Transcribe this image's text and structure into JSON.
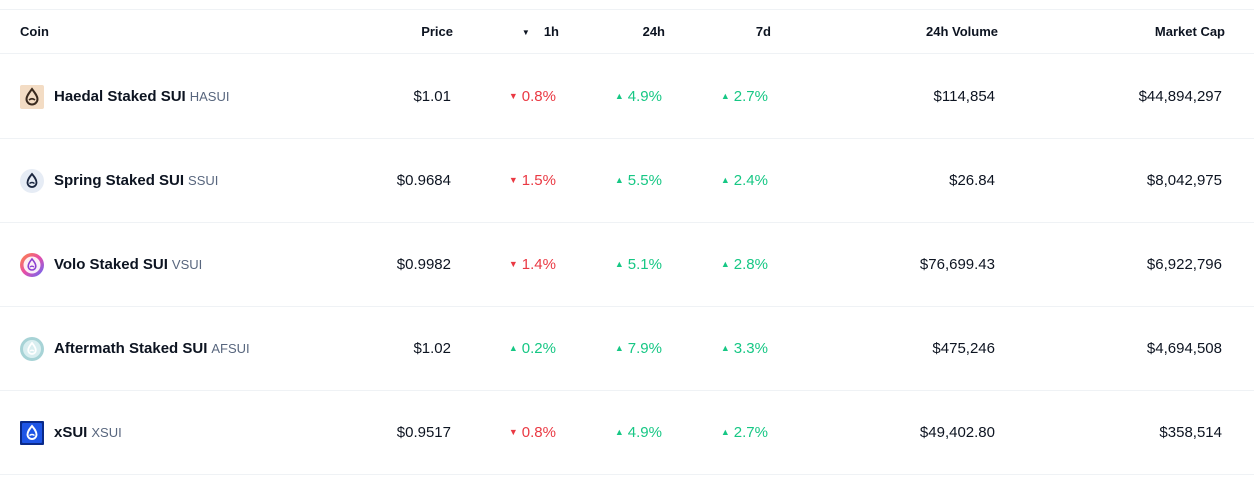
{
  "header": {
    "coin": "Coin",
    "price": "Price",
    "sort_icon": "▼",
    "h1": "1h",
    "h24": "24h",
    "d7": "7d",
    "volume": "24h Volume",
    "market_cap": "Market Cap"
  },
  "colors": {
    "up": "#16c784",
    "down": "#ea3943"
  },
  "rows": [
    {
      "name": "Haedal Staked SUI",
      "symbol": "HASUI",
      "icon": "haedal-sui-icon",
      "price": "$1.01",
      "h1": {
        "dir": "down",
        "arrow": "▼",
        "value": "0.8%"
      },
      "h24": {
        "dir": "up",
        "arrow": "▲",
        "value": "4.9%"
      },
      "d7": {
        "dir": "up",
        "arrow": "▲",
        "value": "2.7%"
      },
      "volume": "$114,854",
      "market_cap": "$44,894,297"
    },
    {
      "name": "Spring Staked SUI",
      "symbol": "SSUI",
      "icon": "spring-sui-icon",
      "price": "$0.9684",
      "h1": {
        "dir": "down",
        "arrow": "▼",
        "value": "1.5%"
      },
      "h24": {
        "dir": "up",
        "arrow": "▲",
        "value": "5.5%"
      },
      "d7": {
        "dir": "up",
        "arrow": "▲",
        "value": "2.4%"
      },
      "volume": "$26.84",
      "market_cap": "$8,042,975"
    },
    {
      "name": "Volo Staked SUI",
      "symbol": "VSUI",
      "icon": "volo-sui-icon",
      "price": "$0.9982",
      "h1": {
        "dir": "down",
        "arrow": "▼",
        "value": "1.4%"
      },
      "h24": {
        "dir": "up",
        "arrow": "▲",
        "value": "5.1%"
      },
      "d7": {
        "dir": "up",
        "arrow": "▲",
        "value": "2.8%"
      },
      "volume": "$76,699.43",
      "market_cap": "$6,922,796"
    },
    {
      "name": "Aftermath Staked SUI",
      "symbol": "AFSUI",
      "icon": "aftermath-sui-icon",
      "price": "$1.02",
      "h1": {
        "dir": "up",
        "arrow": "▲",
        "value": "0.2%"
      },
      "h24": {
        "dir": "up",
        "arrow": "▲",
        "value": "7.9%"
      },
      "d7": {
        "dir": "up",
        "arrow": "▲",
        "value": "3.3%"
      },
      "volume": "$475,246",
      "market_cap": "$4,694,508"
    },
    {
      "name": "xSUI",
      "symbol": "XSUI",
      "icon": "xsui-icon",
      "price": "$0.9517",
      "h1": {
        "dir": "down",
        "arrow": "▼",
        "value": "0.8%"
      },
      "h24": {
        "dir": "up",
        "arrow": "▲",
        "value": "4.9%"
      },
      "d7": {
        "dir": "up",
        "arrow": "▲",
        "value": "2.7%"
      },
      "volume": "$49,402.80",
      "market_cap": "$358,514"
    }
  ]
}
